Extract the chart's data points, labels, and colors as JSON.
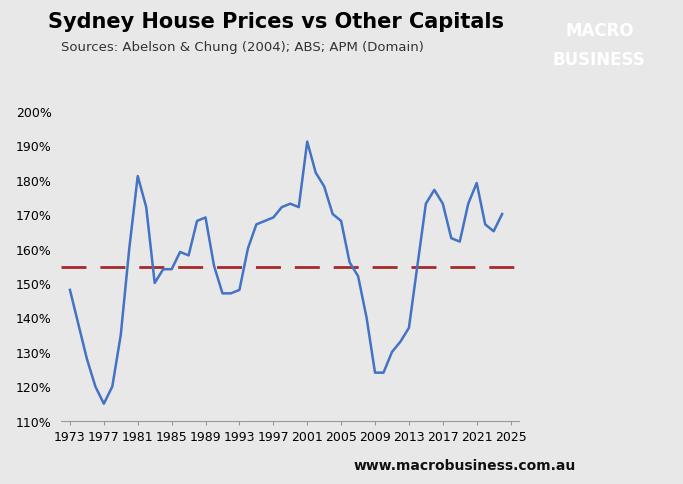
{
  "title": "Sydney House Prices vs Other Capitals",
  "subtitle": "Sources: Abelson & Chung (2004); ABS; APM (Domain)",
  "ylim": [
    1.1,
    2.0
  ],
  "yticks": [
    1.1,
    1.2,
    1.3,
    1.4,
    1.5,
    1.6,
    1.7,
    1.8,
    1.9,
    2.0
  ],
  "ytick_labels": [
    "110%",
    "120%",
    "130%",
    "140%",
    "150%",
    "160%",
    "170%",
    "180%",
    "190%",
    "200%"
  ],
  "xlim": [
    1972,
    2026
  ],
  "xticks": [
    1973,
    1977,
    1981,
    1985,
    1989,
    1993,
    1997,
    2001,
    2005,
    2009,
    2013,
    2017,
    2021,
    2025
  ],
  "line_color": "#4472C4",
  "line_width": 1.8,
  "dashed_line_value": 1.545,
  "dashed_line_color": "#A52A2A",
  "background_color": "#E8E8E8",
  "title_fontsize": 15,
  "subtitle_fontsize": 9.5,
  "tick_fontsize": 9,
  "watermark": "www.macrobusiness.com.au",
  "logo_text_line1": "MACRO",
  "logo_text_line2": "BUSINESS",
  "logo_bg_color": "#CC0000",
  "data_x": [
    1973,
    1974,
    1975,
    1976,
    1977,
    1978,
    1979,
    1980,
    1981,
    1982,
    1983,
    1984,
    1985,
    1986,
    1987,
    1988,
    1989,
    1990,
    1991,
    1992,
    1993,
    1994,
    1995,
    1996,
    1997,
    1998,
    1999,
    2000,
    2001,
    2002,
    2003,
    2004,
    2005,
    2006,
    2007,
    2008,
    2009,
    2010,
    2011,
    2012,
    2013,
    2014,
    2015,
    2016,
    2017,
    2018,
    2019,
    2020,
    2021,
    2022,
    2023,
    2024
  ],
  "data_y": [
    1.48,
    1.38,
    1.28,
    1.2,
    1.15,
    1.2,
    1.35,
    1.6,
    1.81,
    1.72,
    1.5,
    1.54,
    1.54,
    1.59,
    1.58,
    1.68,
    1.69,
    1.55,
    1.47,
    1.47,
    1.48,
    1.6,
    1.67,
    1.68,
    1.69,
    1.72,
    1.73,
    1.72,
    1.91,
    1.82,
    1.78,
    1.7,
    1.68,
    1.56,
    1.52,
    1.4,
    1.24,
    1.24,
    1.3,
    1.33,
    1.37,
    1.55,
    1.73,
    1.77,
    1.73,
    1.63,
    1.62,
    1.73,
    1.79,
    1.67,
    1.65,
    1.7
  ]
}
